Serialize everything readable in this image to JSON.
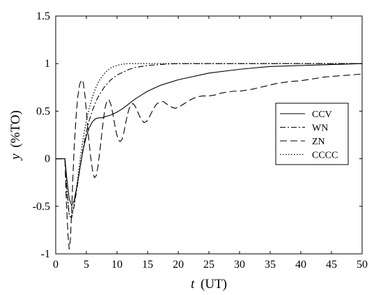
{
  "chart_data": {
    "type": "line",
    "xlabel": {
      "var": "t",
      "unit": "(UT)"
    },
    "ylabel": {
      "var": "y",
      "unit": "(%TO)"
    },
    "xlim": [
      0,
      50
    ],
    "ylim": [
      -1,
      1.5
    ],
    "xticks": [
      "0",
      "5",
      "10",
      "15",
      "20",
      "25",
      "30",
      "35",
      "40",
      "45",
      "50"
    ],
    "yticks": [
      "-1",
      "-0.5",
      "0",
      "0.5",
      "1",
      "1.5"
    ],
    "grid": false,
    "legend_position": "right",
    "series": [
      {
        "name": "CCV",
        "dash": "solid",
        "x": [
          0,
          1.5,
          1.8,
          2.2,
          2.6,
          3.0,
          3.5,
          4.0,
          4.5,
          5.0,
          5.5,
          6.0,
          6.5,
          7.0,
          7.5,
          8.0,
          8.5,
          9.0,
          10,
          11,
          12,
          13,
          14,
          15,
          17,
          20,
          25,
          30,
          35,
          40,
          45,
          50
        ],
        "y": [
          0,
          0,
          -0.2,
          -0.42,
          -0.49,
          -0.44,
          -0.28,
          -0.08,
          0.1,
          0.24,
          0.33,
          0.39,
          0.42,
          0.43,
          0.43,
          0.44,
          0.45,
          0.46,
          0.49,
          0.53,
          0.58,
          0.63,
          0.67,
          0.71,
          0.77,
          0.83,
          0.9,
          0.94,
          0.97,
          0.98,
          0.99,
          1.0
        ]
      },
      {
        "name": "WN",
        "dash": "dashdot",
        "x": [
          0,
          1.5,
          1.8,
          2.2,
          2.6,
          3.0,
          3.5,
          4.0,
          4.5,
          5.0,
          5.5,
          6.0,
          6.5,
          7.0,
          8.0,
          9.0,
          10,
          11,
          12,
          13,
          14,
          15,
          16,
          17,
          18,
          20,
          25,
          30,
          40,
          50
        ],
        "y": [
          0,
          0,
          -0.35,
          -0.6,
          -0.62,
          -0.5,
          -0.3,
          -0.08,
          0.12,
          0.28,
          0.41,
          0.51,
          0.59,
          0.66,
          0.76,
          0.83,
          0.88,
          0.91,
          0.94,
          0.96,
          0.97,
          0.98,
          0.985,
          0.99,
          0.995,
          1.0,
          1.0,
          1.0,
          1.0,
          1.0
        ]
      },
      {
        "name": "ZN",
        "dash": "dashed",
        "x": [
          0,
          1.5,
          1.7,
          2.0,
          2.2,
          2.4,
          2.6,
          2.8,
          3.0,
          3.3,
          3.6,
          3.9,
          4.2,
          4.5,
          4.8,
          5.1,
          5.4,
          5.7,
          6.0,
          6.3,
          6.6,
          6.9,
          7.2,
          7.5,
          7.8,
          8.1,
          8.4,
          8.7,
          9.0,
          9.3,
          9.6,
          9.9,
          10.2,
          10.5,
          10.8,
          11.1,
          11.4,
          11.7,
          12.0,
          12.3,
          12.6,
          12.9,
          13.2,
          13.6,
          14.0,
          14.4,
          14.8,
          15.2,
          15.6,
          16.0,
          16.4,
          16.8,
          17.2,
          17.6,
          18.0,
          18.5,
          19.0,
          19.5,
          20,
          21,
          22,
          23,
          24,
          25,
          26,
          27,
          28,
          29,
          30,
          32,
          34,
          36,
          38,
          40,
          42,
          44,
          46,
          48,
          50
        ],
        "y": [
          0,
          0,
          -0.4,
          -0.8,
          -0.95,
          -0.85,
          -0.55,
          -0.2,
          0.1,
          0.42,
          0.65,
          0.78,
          0.83,
          0.8,
          0.65,
          0.42,
          0.2,
          0.02,
          -0.12,
          -0.2,
          -0.18,
          -0.08,
          0.08,
          0.25,
          0.42,
          0.55,
          0.61,
          0.62,
          0.57,
          0.48,
          0.37,
          0.27,
          0.2,
          0.18,
          0.2,
          0.27,
          0.37,
          0.46,
          0.53,
          0.57,
          0.58,
          0.56,
          0.52,
          0.46,
          0.41,
          0.38,
          0.39,
          0.43,
          0.48,
          0.53,
          0.57,
          0.59,
          0.6,
          0.6,
          0.58,
          0.56,
          0.54,
          0.53,
          0.54,
          0.58,
          0.62,
          0.65,
          0.66,
          0.66,
          0.67,
          0.69,
          0.7,
          0.71,
          0.71,
          0.73,
          0.76,
          0.79,
          0.81,
          0.82,
          0.84,
          0.86,
          0.87,
          0.88,
          0.89
        ]
      },
      {
        "name": "CCCC",
        "dash": "dotted",
        "x": [
          0,
          1.5,
          1.8,
          2.2,
          2.6,
          3.0,
          3.5,
          4.0,
          4.5,
          5.0,
          5.5,
          6.0,
          6.5,
          7.0,
          7.5,
          8.0,
          8.5,
          9.0,
          9.5,
          10,
          10.5,
          11,
          12,
          13,
          14,
          15,
          20,
          30,
          40,
          50
        ],
        "y": [
          0,
          0,
          -0.3,
          -0.58,
          -0.6,
          -0.48,
          -0.25,
          0.0,
          0.22,
          0.4,
          0.54,
          0.65,
          0.74,
          0.81,
          0.86,
          0.9,
          0.93,
          0.955,
          0.97,
          0.98,
          0.99,
          0.995,
          1.0,
          1.0,
          1.0,
          1.0,
          1.0,
          1.0,
          1.0,
          1.0
        ]
      }
    ]
  }
}
